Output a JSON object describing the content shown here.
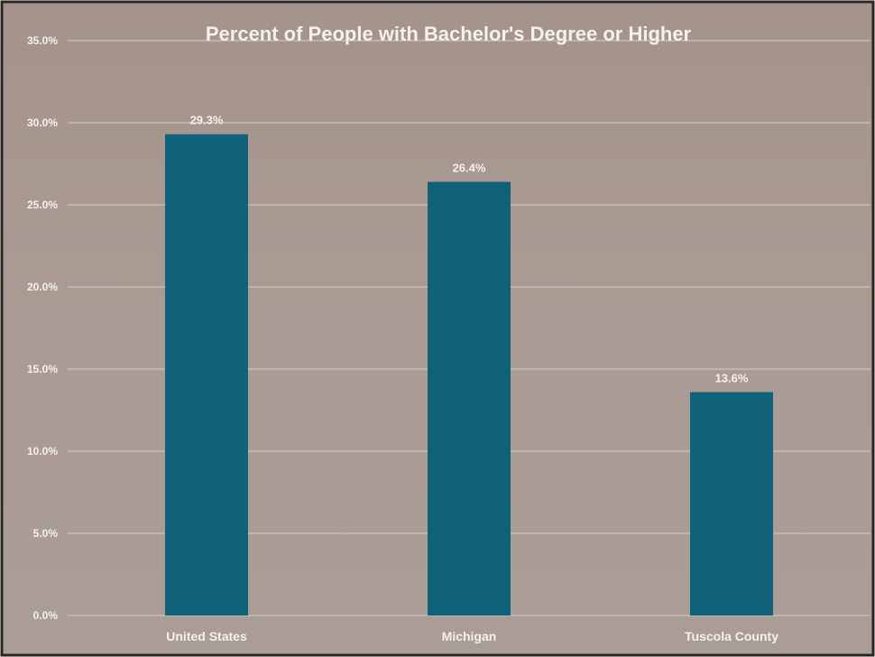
{
  "chart_data": {
    "type": "bar",
    "title": "Percent of People with Bachelor's Degree or Higher",
    "categories": [
      "United States",
      "Michigan",
      "Tuscola County"
    ],
    "values": [
      29.3,
      26.4,
      13.6
    ],
    "data_labels": [
      "29.3%",
      "26.4%",
      "13.6%"
    ],
    "y_ticks": [
      0,
      5,
      10,
      15,
      20,
      25,
      30,
      35
    ],
    "y_tick_labels": [
      "0.0%",
      "5.0%",
      "10.0%",
      "15.0%",
      "20.0%",
      "25.0%",
      "30.0%",
      "35.0%"
    ],
    "ylim": [
      0,
      35
    ],
    "xlabel": "",
    "ylabel": "",
    "grid": true,
    "legend": "none",
    "colors": {
      "bar": "#10617a",
      "background": "#a89a91",
      "gridline": "#c7bdb5",
      "text": "#f4f1ee",
      "border": "#2a2522"
    }
  }
}
